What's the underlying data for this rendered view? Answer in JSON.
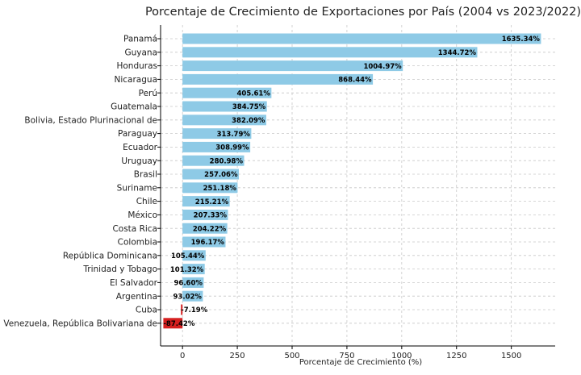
{
  "chart_data": {
    "type": "bar",
    "orientation": "horizontal",
    "title": "Porcentaje de Crecimiento de Exportaciones por País (2004 vs 2023/2022)",
    "xlabel": "Porcentaje de Crecimiento (%)",
    "ylabel": "",
    "xlim": [
      -100,
      1700
    ],
    "xticks": [
      0,
      250,
      500,
      750,
      1000,
      1250,
      1500
    ],
    "grid": true,
    "colors": {
      "positive": "#8ecae6",
      "negative": "#d62020"
    },
    "categories": [
      "Panamá",
      "Guyana",
      "Honduras",
      "Nicaragua",
      "Perú",
      "Guatemala",
      "Bolivia, Estado Plurinacional de",
      "Paraguay",
      "Ecuador",
      "Uruguay",
      "Brasil",
      "Suriname",
      "Chile",
      "México",
      "Costa Rica",
      "Colombia",
      "República Dominicana",
      "Trinidad y Tobago",
      "El Salvador",
      "Argentina",
      "Cuba",
      "Venezuela, República Bolivariana de"
    ],
    "values": [
      1635.34,
      1344.72,
      1004.97,
      868.44,
      405.61,
      384.75,
      382.09,
      313.79,
      308.99,
      280.98,
      257.06,
      251.18,
      215.21,
      207.33,
      204.22,
      196.17,
      105.44,
      101.32,
      96.6,
      93.02,
      -7.19,
      -87.42
    ],
    "data_labels": [
      "1635.34%",
      "1344.72%",
      "1004.97%",
      "868.44%",
      "405.61%",
      "384.75%",
      "382.09%",
      "313.79%",
      "308.99%",
      "280.98%",
      "257.06%",
      "251.18%",
      "215.21%",
      "207.33%",
      "204.22%",
      "196.17%",
      "105.44%",
      "101.32%",
      "96.60%",
      "93.02%",
      "-7.19%",
      "-87.42%"
    ]
  }
}
